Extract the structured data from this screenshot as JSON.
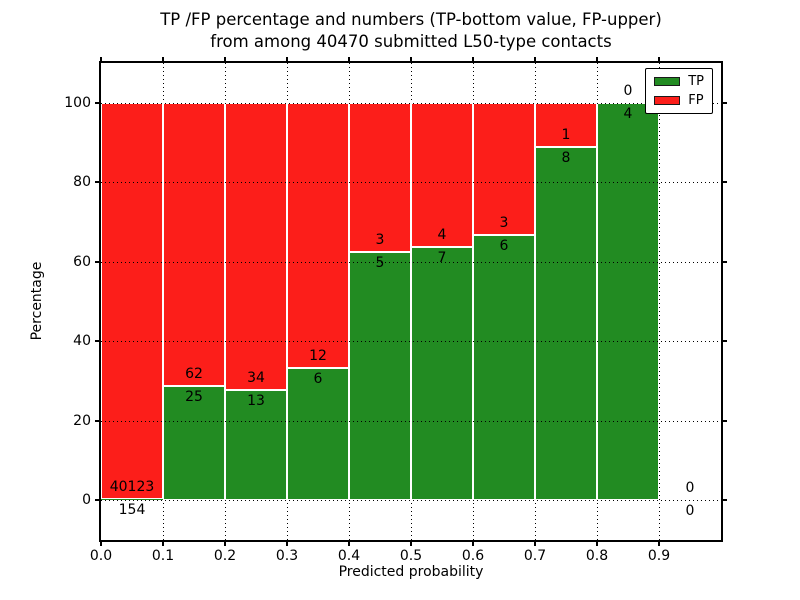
{
  "chart_data": {
    "type": "bar",
    "stacked": true,
    "title_line1": "TP /FP percentage and numbers (TP-bottom value, FP-upper)",
    "title_line2": "from among 40470 submitted L50-type contacts",
    "xlabel": "Predicted probability",
    "ylabel": "Percentage",
    "xlim": [
      0.0,
      1.0
    ],
    "ylim": [
      -10,
      110
    ],
    "xticks": [
      "0.0",
      "0.1",
      "0.2",
      "0.3",
      "0.4",
      "0.5",
      "0.6",
      "0.7",
      "0.8",
      "0.9"
    ],
    "yticks": [
      0,
      20,
      40,
      60,
      80,
      100
    ],
    "grid": "dotted",
    "bar_width": 0.1,
    "total_contacts": 40470,
    "colors": {
      "tp": "#228b22",
      "fp": "#fc1e1a"
    },
    "legend": {
      "position": "upper right",
      "entries": [
        {
          "label": "TP",
          "color": "#228b22"
        },
        {
          "label": "FP",
          "color": "#fc1e1a"
        }
      ]
    },
    "bins": [
      {
        "x_range": [
          0.0,
          0.1
        ],
        "tp": 154,
        "fp": 40123,
        "tp_pct": 0.38,
        "fp_pct": 99.62
      },
      {
        "x_range": [
          0.1,
          0.2
        ],
        "tp": 25,
        "fp": 62,
        "tp_pct": 28.74,
        "fp_pct": 71.26
      },
      {
        "x_range": [
          0.2,
          0.3
        ],
        "tp": 13,
        "fp": 34,
        "tp_pct": 27.66,
        "fp_pct": 72.34
      },
      {
        "x_range": [
          0.3,
          0.4
        ],
        "tp": 6,
        "fp": 12,
        "tp_pct": 33.33,
        "fp_pct": 66.67
      },
      {
        "x_range": [
          0.4,
          0.5
        ],
        "tp": 5,
        "fp": 3,
        "tp_pct": 62.5,
        "fp_pct": 37.5
      },
      {
        "x_range": [
          0.5,
          0.6
        ],
        "tp": 7,
        "fp": 4,
        "tp_pct": 63.64,
        "fp_pct": 36.36
      },
      {
        "x_range": [
          0.6,
          0.7
        ],
        "tp": 6,
        "fp": 3,
        "tp_pct": 66.67,
        "fp_pct": 33.33
      },
      {
        "x_range": [
          0.7,
          0.8
        ],
        "tp": 8,
        "fp": 1,
        "tp_pct": 88.89,
        "fp_pct": 11.11
      },
      {
        "x_range": [
          0.8,
          0.9
        ],
        "tp": 4,
        "fp": 0,
        "tp_pct": 100,
        "fp_pct": 0
      },
      {
        "x_range": [
          0.9,
          1.0
        ],
        "tp": 0,
        "fp": 0,
        "tp_pct": 0,
        "fp_pct": 0
      }
    ]
  }
}
